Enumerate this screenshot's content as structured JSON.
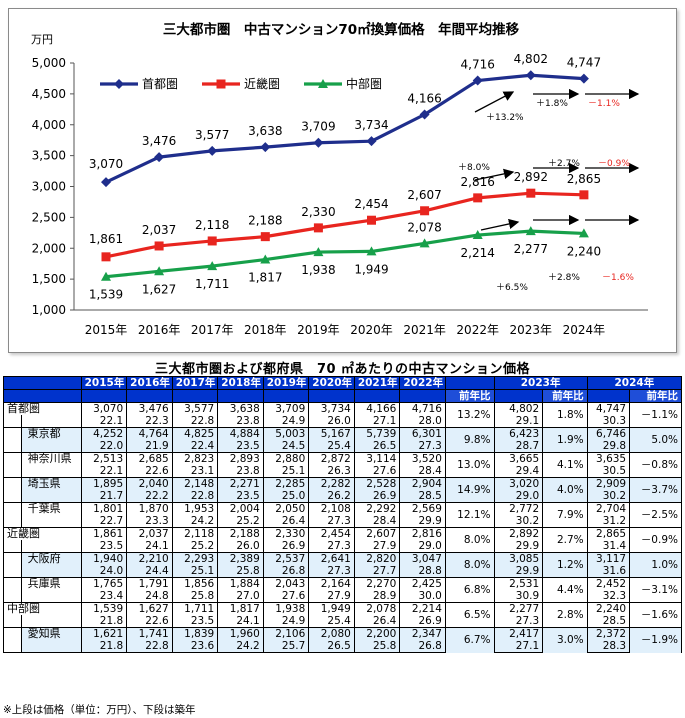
{
  "chart_data": {
    "type": "line",
    "title": "三大都市圏　中古マンション70㎡換算価格　年間平均推移",
    "ylabel": "万円",
    "ylim": [
      1000,
      5000
    ],
    "yticks": [
      "1,000",
      "1,500",
      "2,000",
      "2,500",
      "3,000",
      "3,500",
      "4,000",
      "4,500",
      "5,000"
    ],
    "categories": [
      "2015年",
      "2016年",
      "2017年",
      "2018年",
      "2019年",
      "2020年",
      "2021年",
      "2022年",
      "2023年",
      "2024年"
    ],
    "series": [
      {
        "name": "首都圏",
        "color": "#1f2e8c",
        "values": [
          3070,
          3476,
          3577,
          3638,
          3709,
          3734,
          4166,
          4716,
          4802,
          4747
        ],
        "labels": [
          "3,070",
          "3,476",
          "3,577",
          "3,638",
          "3,709",
          "3,734",
          "4,166",
          "4,716",
          "4,802",
          "4,747"
        ]
      },
      {
        "name": "近畿圏",
        "color": "#e8251f",
        "values": [
          1861,
          2037,
          2118,
          2188,
          2330,
          2454,
          2607,
          2816,
          2892,
          2865
        ],
        "labels": [
          "1,861",
          "2,037",
          "2,118",
          "2,188",
          "2,330",
          "2,454",
          "2,607",
          "2,816",
          "2,892",
          "2,865"
        ]
      },
      {
        "name": "中部圏",
        "color": "#17a04a",
        "values": [
          1539,
          1627,
          1711,
          1817,
          1938,
          1949,
          2078,
          2214,
          2277,
          2240
        ],
        "labels": [
          "1,539",
          "1,627",
          "1,711",
          "1,817",
          "1,938",
          "1,949",
          "2,078",
          "2,214",
          "2,277",
          "2,240"
        ]
      }
    ],
    "legend": "top-left",
    "annotations": [
      {
        "text": "＋13.2%",
        "color": "#000"
      },
      {
        "text": "＋1.8%",
        "color": "#000"
      },
      {
        "text": "－1.1%",
        "color": "#e8251f"
      },
      {
        "text": "＋8.0%",
        "color": "#000"
      },
      {
        "text": "＋2.7%",
        "color": "#000"
      },
      {
        "text": "－0.9%",
        "color": "#e8251f"
      },
      {
        "text": "＋6.5%",
        "color": "#000"
      },
      {
        "text": "＋2.8%",
        "color": "#000"
      },
      {
        "text": "－1.6%",
        "color": "#e8251f"
      }
    ]
  },
  "table": {
    "title": "三大都市圏および都府県　70 ㎡あたりの中古マンション価格",
    "years": [
      "2015年",
      "2016年",
      "2017年",
      "2018年",
      "2019年",
      "2020年",
      "2021年",
      "2022年",
      "2023年",
      "2024年"
    ],
    "yoy_label": "前年比",
    "rows": [
      {
        "name": "首都圏",
        "level": 0,
        "blue": false,
        "prices": [
          "3,070",
          "3,476",
          "3,577",
          "3,638",
          "3,709",
          "3,734",
          "4,166",
          "4,716"
        ],
        "ages": [
          "22.1",
          "22.3",
          "22.8",
          "23.8",
          "24.9",
          "26.0",
          "27.1",
          "28.0"
        ],
        "yoy22": "13.2%",
        "p23": "4,802",
        "a23": "29.1",
        "yoy23": "1.8%",
        "p24": "4,747",
        "a24": "30.3",
        "yoy24": "－1.1%"
      },
      {
        "name": "東京都",
        "level": 1,
        "blue": true,
        "prices": [
          "4,252",
          "4,764",
          "4,825",
          "4,884",
          "5,003",
          "5,167",
          "5,739",
          "6,301"
        ],
        "ages": [
          "22.0",
          "21.9",
          "22.4",
          "23.5",
          "24.5",
          "25.4",
          "26.5",
          "27.3"
        ],
        "yoy22": "9.8%",
        "p23": "6,423",
        "a23": "28.7",
        "yoy23": "1.9%",
        "p24": "6,746",
        "a24": "29.8",
        "yoy24": "5.0%"
      },
      {
        "name": "神奈川県",
        "level": 1,
        "blue": false,
        "prices": [
          "2,513",
          "2,685",
          "2,823",
          "2,893",
          "2,880",
          "2,872",
          "3,114",
          "3,520"
        ],
        "ages": [
          "22.1",
          "22.6",
          "23.1",
          "23.8",
          "25.1",
          "26.3",
          "27.6",
          "28.4"
        ],
        "yoy22": "13.0%",
        "p23": "3,665",
        "a23": "29.4",
        "yoy23": "4.1%",
        "p24": "3,635",
        "a24": "30.5",
        "yoy24": "－0.8%"
      },
      {
        "name": "埼玉県",
        "level": 1,
        "blue": true,
        "prices": [
          "1,895",
          "2,040",
          "2,148",
          "2,271",
          "2,285",
          "2,282",
          "2,528",
          "2,904"
        ],
        "ages": [
          "21.7",
          "22.2",
          "22.8",
          "23.5",
          "25.0",
          "26.2",
          "26.9",
          "28.5"
        ],
        "yoy22": "14.9%",
        "p23": "3,020",
        "a23": "29.0",
        "yoy23": "4.0%",
        "p24": "2,909",
        "a24": "30.2",
        "yoy24": "－3.7%"
      },
      {
        "name": "千葉県",
        "level": 1,
        "blue": false,
        "prices": [
          "1,801",
          "1,870",
          "1,953",
          "2,004",
          "2,050",
          "2,108",
          "2,292",
          "2,569"
        ],
        "ages": [
          "22.7",
          "23.3",
          "24.2",
          "25.2",
          "26.4",
          "27.3",
          "28.4",
          "29.9"
        ],
        "yoy22": "12.1%",
        "p23": "2,772",
        "a23": "30.2",
        "yoy23": "7.9%",
        "p24": "2,704",
        "a24": "31.2",
        "yoy24": "－2.5%"
      },
      {
        "name": "近畿圏",
        "level": 0,
        "blue": false,
        "prices": [
          "1,861",
          "2,037",
          "2,118",
          "2,188",
          "2,330",
          "2,454",
          "2,607",
          "2,816"
        ],
        "ages": [
          "23.5",
          "24.1",
          "25.2",
          "26.0",
          "26.9",
          "27.3",
          "27.9",
          "29.0"
        ],
        "yoy22": "8.0%",
        "p23": "2,892",
        "a23": "29.9",
        "yoy23": "2.7%",
        "p24": "2,865",
        "a24": "31.4",
        "yoy24": "－0.9%"
      },
      {
        "name": "大阪府",
        "level": 1,
        "blue": true,
        "prices": [
          "1,940",
          "2,210",
          "2,293",
          "2,389",
          "2,537",
          "2,641",
          "2,820",
          "3,047"
        ],
        "ages": [
          "24.0",
          "24.4",
          "25.1",
          "25.8",
          "26.8",
          "27.3",
          "27.7",
          "28.8"
        ],
        "yoy22": "8.0%",
        "p23": "3,085",
        "a23": "29.9",
        "yoy23": "1.2%",
        "p24": "3,117",
        "a24": "31.6",
        "yoy24": "1.0%"
      },
      {
        "name": "兵庫県",
        "level": 1,
        "blue": false,
        "prices": [
          "1,765",
          "1,791",
          "1,856",
          "1,884",
          "2,043",
          "2,164",
          "2,270",
          "2,425"
        ],
        "ages": [
          "23.4",
          "24.8",
          "25.8",
          "27.0",
          "27.6",
          "27.9",
          "28.9",
          "30.0"
        ],
        "yoy22": "6.8%",
        "p23": "2,531",
        "a23": "30.9",
        "yoy23": "4.4%",
        "p24": "2,452",
        "a24": "32.3",
        "yoy24": "－3.1%"
      },
      {
        "name": "中部圏",
        "level": 0,
        "blue": false,
        "prices": [
          "1,539",
          "1,627",
          "1,711",
          "1,817",
          "1,938",
          "1,949",
          "2,078",
          "2,214"
        ],
        "ages": [
          "21.8",
          "22.6",
          "23.5",
          "24.1",
          "24.9",
          "25.4",
          "26.4",
          "26.9"
        ],
        "yoy22": "6.5%",
        "p23": "2,277",
        "a23": "27.3",
        "yoy23": "2.8%",
        "p24": "2,240",
        "a24": "28.5",
        "yoy24": "－1.6%"
      },
      {
        "name": "愛知県",
        "level": 1,
        "blue": true,
        "prices": [
          "1,621",
          "1,741",
          "1,839",
          "1,960",
          "2,106",
          "2,080",
          "2,200",
          "2,347"
        ],
        "ages": [
          "21.8",
          "22.8",
          "23.6",
          "24.2",
          "25.7",
          "26.5",
          "25.8",
          "26.8"
        ],
        "yoy22": "6.7%",
        "p23": "2,417",
        "a23": "27.1",
        "yoy23": "3.0%",
        "p24": "2,372",
        "a24": "28.3",
        "yoy24": "－1.9%"
      }
    ],
    "footnote": "※上段は価格（単位：万円）、下段は築年"
  }
}
